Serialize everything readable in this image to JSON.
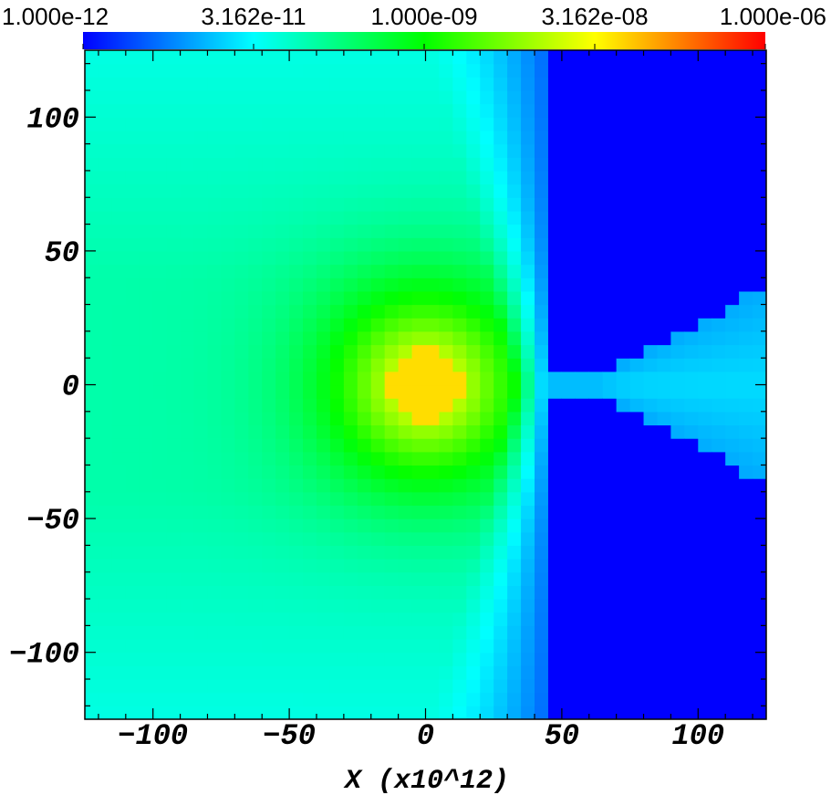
{
  "chart_data": {
    "type": "heatmap",
    "title": "",
    "xlabel": "X (x10^12)",
    "ylabel": "",
    "xlim": [
      -125,
      125
    ],
    "ylim": [
      -125,
      125
    ],
    "x_ticks": [
      -100,
      -50,
      0,
      50,
      100
    ],
    "y_ticks": [
      100,
      50,
      0,
      -50,
      -100
    ],
    "x_tick_labels": [
      "−100",
      "−50",
      "0",
      "50",
      "100"
    ],
    "y_tick_labels": [
      "100",
      "50",
      "0",
      "−50",
      "−100"
    ],
    "colorbar": {
      "scale": "log",
      "range": [
        1e-12,
        1e-06
      ],
      "tick_values": [
        1e-12,
        3.162e-11,
        1e-09,
        3.162e-08,
        1e-06
      ],
      "tick_labels": [
        "1.000e-12",
        "3.162e-11",
        "1.000e-09",
        "3.162e-08",
        "1.000e-06"
      ],
      "colormap": [
        "#0000ff",
        "#00ffff",
        "#00ff00",
        "#ffff00",
        "#ff0000"
      ]
    },
    "field_description_values": {
      "core_center": [
        0,
        0
      ],
      "core_value_log10": -7.3,
      "shock_front_x": 47,
      "background_right_log10": -12,
      "jet_centerline_y": 0
    }
  }
}
